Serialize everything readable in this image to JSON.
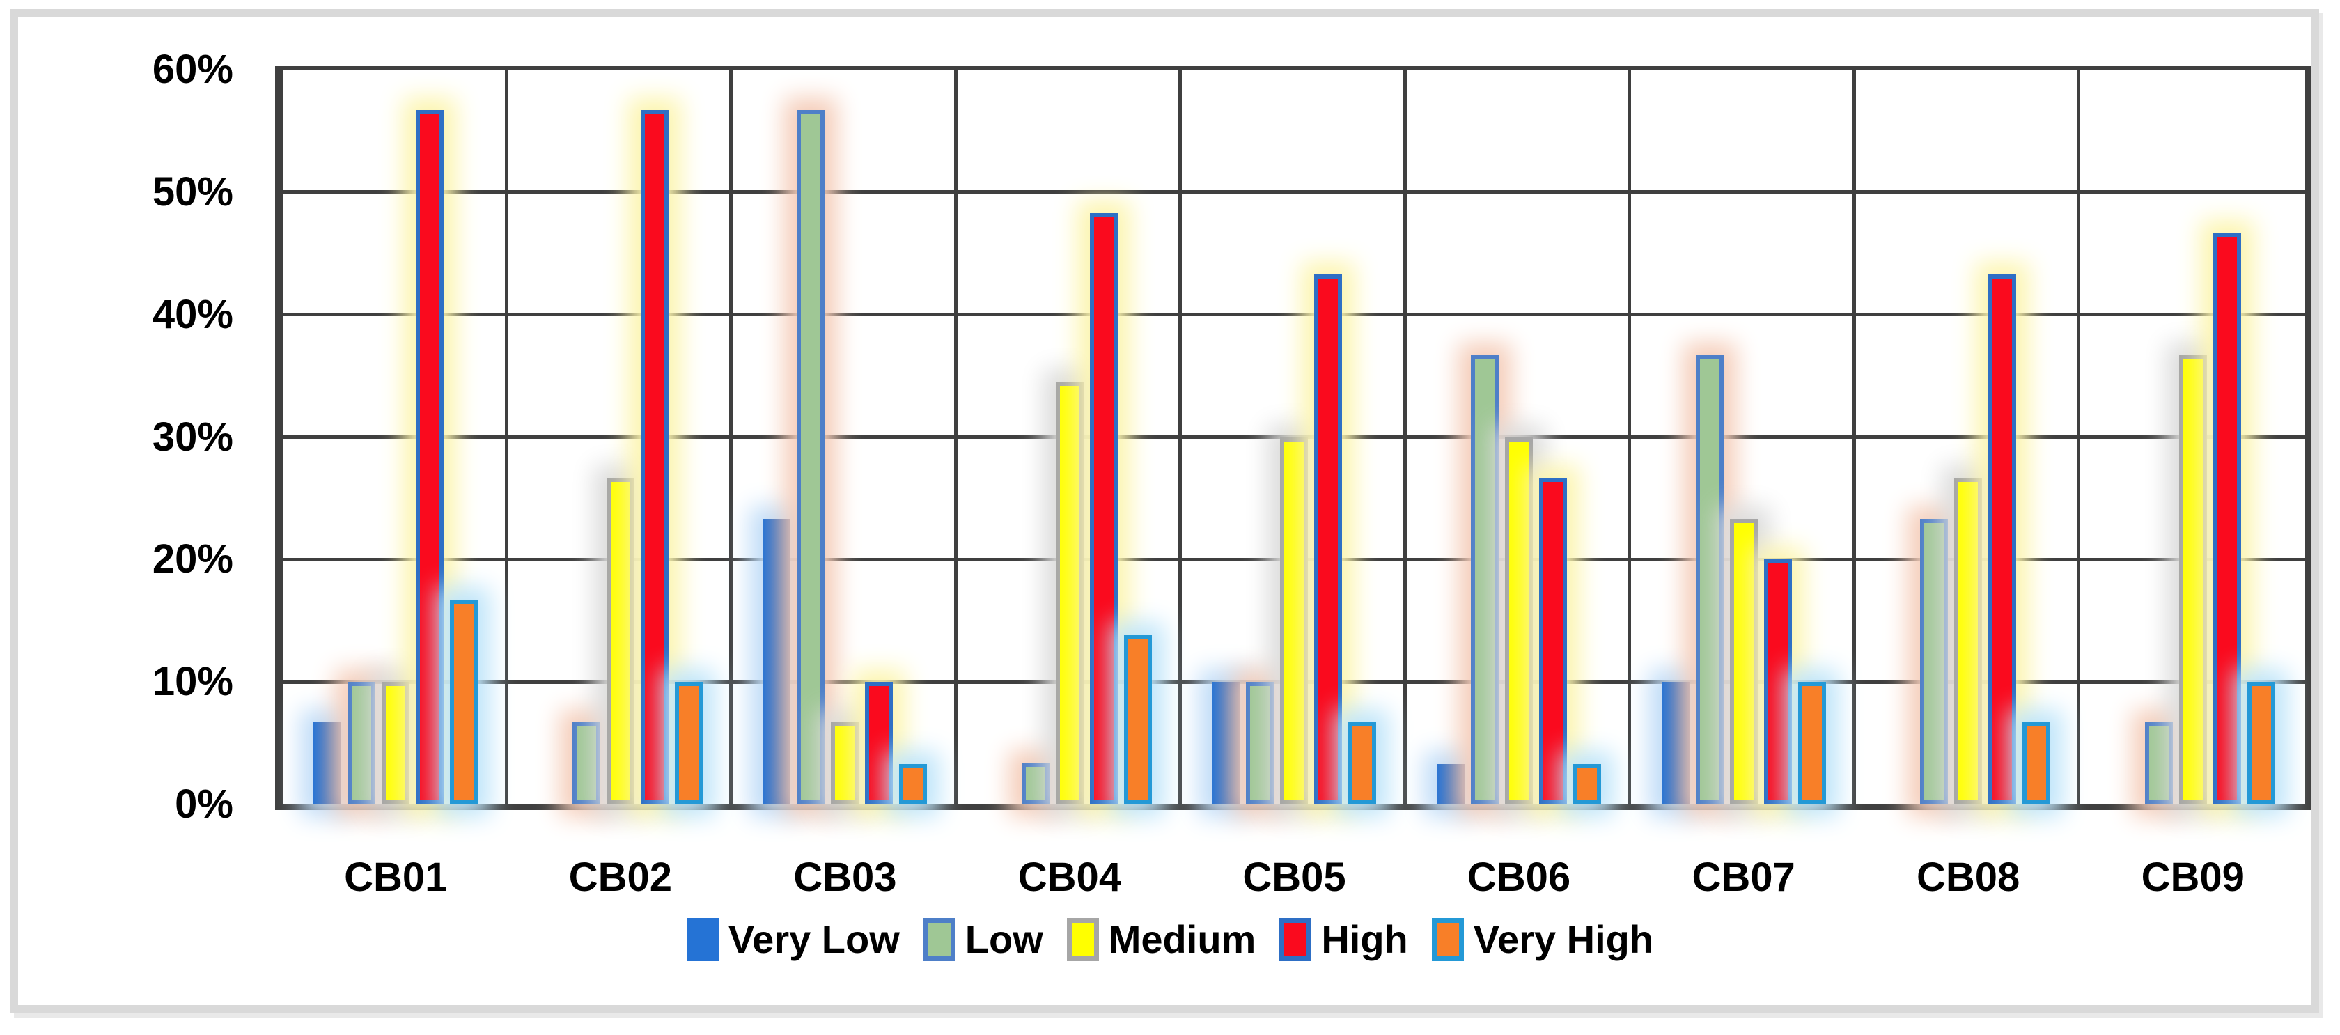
{
  "chart_data": {
    "type": "bar",
    "title": "",
    "xlabel": "",
    "ylabel": "",
    "categories": [
      "CB01",
      "CB02",
      "CB03",
      "CB04",
      "CB05",
      "CB06",
      "CB07",
      "CB08",
      "CB09"
    ],
    "series": [
      {
        "name": "Very Low",
        "values": [
          6.7,
          0,
          23.3,
          0,
          10,
          3.3,
          10,
          0,
          0
        ],
        "fill": "#2573d5",
        "fill2": "#6f7ba4",
        "border": "",
        "glow": "#bfdcf8"
      },
      {
        "name": "Low",
        "values": [
          10,
          6.7,
          56.7,
          3.4,
          10,
          36.7,
          36.7,
          23.3,
          6.7
        ],
        "fill": "#9fc795",
        "fill2": "",
        "border": "#4e7fc8",
        "glow": "#f5cdb9"
      },
      {
        "name": "Medium",
        "values": [
          10,
          26.7,
          6.7,
          34.5,
          30,
          30,
          23.3,
          26.7,
          36.7
        ],
        "fill": "#ffff00",
        "fill2": "",
        "border": "#a6a6a6",
        "glow": "#dcdcdc"
      },
      {
        "name": "High",
        "values": [
          56.7,
          56.7,
          10,
          48.3,
          43.3,
          26.7,
          20,
          43.3,
          46.7
        ],
        "fill": "#fa0a1e",
        "fill2": "",
        "border": "#2e6fc5",
        "glow": "#fcf5af"
      },
      {
        "name": "Very High",
        "values": [
          16.7,
          10,
          3.3,
          13.8,
          6.7,
          3.3,
          10,
          6.7,
          10
        ],
        "fill": "#f87f28",
        "fill2": "",
        "border": "#2499d6",
        "glow": "#bfe5fa"
      }
    ],
    "ylim": [
      0,
      60
    ],
    "yticks": [
      "0%",
      "10%",
      "20%",
      "30%",
      "40%",
      "50%",
      "60%"
    ],
    "grid": true,
    "gridline_color": "#3f3f3f",
    "frame_color": "#d9d9d9",
    "legend_position": "bottom"
  }
}
